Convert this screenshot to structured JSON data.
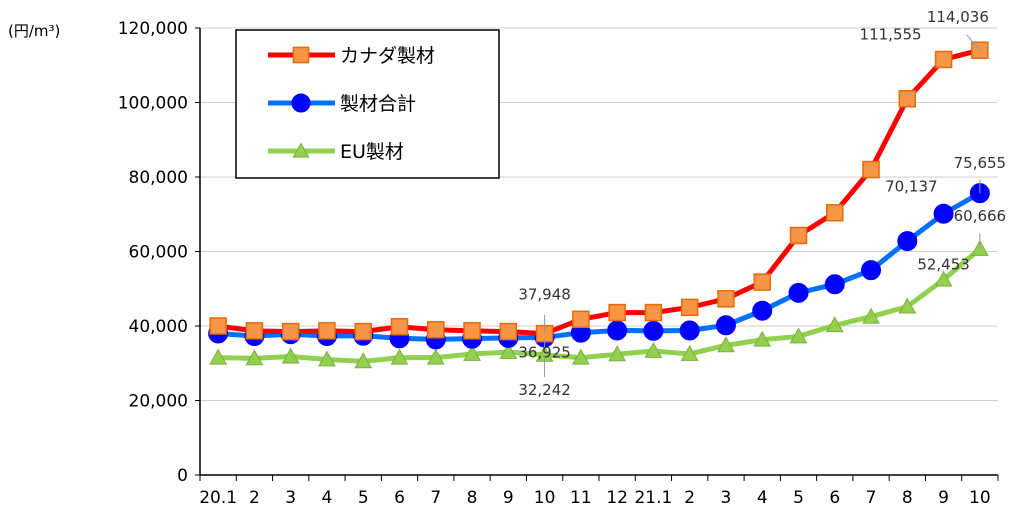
{
  "chart_data": {
    "type": "line",
    "ylabel": "(円/m³)",
    "ylim": [
      0,
      120000
    ],
    "y_ticks": [
      "0",
      "20,000",
      "40,000",
      "60,000",
      "80,000",
      "100,000",
      "120,000"
    ],
    "grid": true,
    "legend_position": "top-left",
    "categories": [
      "20.1",
      "2",
      "3",
      "4",
      "5",
      "6",
      "7",
      "8",
      "9",
      "10",
      "11",
      "12",
      "21.1",
      "2",
      "3",
      "4",
      "5",
      "6",
      "7",
      "8",
      "9",
      "10"
    ],
    "series": [
      {
        "name": "カナダ製材",
        "line_color": "#ff0000",
        "marker": "square",
        "marker_fill": "#f79646",
        "marker_stroke": "#e46c0a",
        "values": [
          40000,
          38700,
          38500,
          38700,
          38500,
          39800,
          39000,
          38700,
          38500,
          37948,
          41800,
          43600,
          43600,
          45000,
          47300,
          51800,
          64300,
          70400,
          82000,
          101000,
          111555,
          114036
        ]
      },
      {
        "name": "製材合計",
        "line_color": "#0070ff",
        "marker": "circle",
        "marker_fill": "#0000ff",
        "marker_stroke": "#0000ff",
        "values": [
          38000,
          37300,
          37800,
          37300,
          37400,
          36700,
          36400,
          36600,
          36800,
          36925,
          38200,
          38800,
          38700,
          38800,
          40200,
          44100,
          48900,
          51200,
          55000,
          62800,
          70137,
          75655
        ]
      },
      {
        "name": "EU製材",
        "line_color": "#92d050",
        "marker": "triangle",
        "marker_fill": "#92d050",
        "marker_stroke": "#7aaf3a",
        "values": [
          31500,
          31300,
          31800,
          31000,
          30500,
          31500,
          31500,
          32500,
          33000,
          32242,
          31500,
          32400,
          33300,
          32500,
          34800,
          36300,
          37200,
          40200,
          42500,
          45200,
          52453,
          60666
        ]
      }
    ],
    "annotations": [
      {
        "text": "114,036",
        "series": 0,
        "index": 21
      },
      {
        "text": "111,555",
        "series": 0,
        "index": 20
      },
      {
        "text": "75,655",
        "series": 1,
        "index": 21
      },
      {
        "text": "70,137",
        "series": 1,
        "index": 20
      },
      {
        "text": "60,666",
        "series": 2,
        "index": 21
      },
      {
        "text": "52,453",
        "series": 2,
        "index": 20
      },
      {
        "text": "37,948",
        "series": 0,
        "index": 9
      },
      {
        "text": "36,925",
        "series": 1,
        "index": 9
      },
      {
        "text": "32,242",
        "series": 2,
        "index": 9
      }
    ]
  }
}
